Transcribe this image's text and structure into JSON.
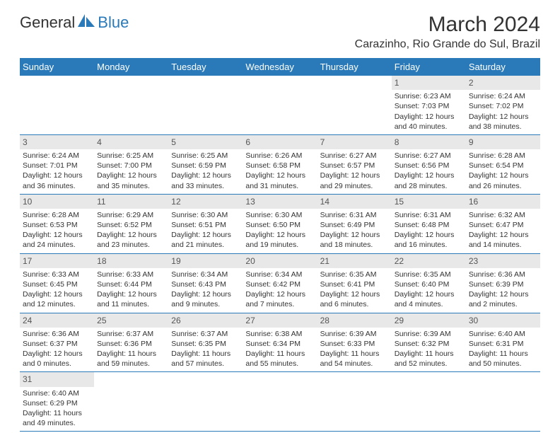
{
  "logo": {
    "part1": "General",
    "part2": "Blue"
  },
  "title": "March 2024",
  "location": "Carazinho, Rio Grande do Sul, Brazil",
  "colors": {
    "brand": "#2a7ab9",
    "headerBg": "#2a7ab9",
    "daynumBg": "#e8e8e8",
    "text": "#333333",
    "background": "#ffffff",
    "rowBorder": "#2a7ab9"
  },
  "weekdays": [
    "Sunday",
    "Monday",
    "Tuesday",
    "Wednesday",
    "Thursday",
    "Friday",
    "Saturday"
  ],
  "startOffset": 5,
  "days": [
    {
      "n": 1,
      "sunrise": "6:23 AM",
      "sunset": "7:03 PM",
      "daylight": "12 hours and 40 minutes."
    },
    {
      "n": 2,
      "sunrise": "6:24 AM",
      "sunset": "7:02 PM",
      "daylight": "12 hours and 38 minutes."
    },
    {
      "n": 3,
      "sunrise": "6:24 AM",
      "sunset": "7:01 PM",
      "daylight": "12 hours and 36 minutes."
    },
    {
      "n": 4,
      "sunrise": "6:25 AM",
      "sunset": "7:00 PM",
      "daylight": "12 hours and 35 minutes."
    },
    {
      "n": 5,
      "sunrise": "6:25 AM",
      "sunset": "6:59 PM",
      "daylight": "12 hours and 33 minutes."
    },
    {
      "n": 6,
      "sunrise": "6:26 AM",
      "sunset": "6:58 PM",
      "daylight": "12 hours and 31 minutes."
    },
    {
      "n": 7,
      "sunrise": "6:27 AM",
      "sunset": "6:57 PM",
      "daylight": "12 hours and 29 minutes."
    },
    {
      "n": 8,
      "sunrise": "6:27 AM",
      "sunset": "6:56 PM",
      "daylight": "12 hours and 28 minutes."
    },
    {
      "n": 9,
      "sunrise": "6:28 AM",
      "sunset": "6:54 PM",
      "daylight": "12 hours and 26 minutes."
    },
    {
      "n": 10,
      "sunrise": "6:28 AM",
      "sunset": "6:53 PM",
      "daylight": "12 hours and 24 minutes."
    },
    {
      "n": 11,
      "sunrise": "6:29 AM",
      "sunset": "6:52 PM",
      "daylight": "12 hours and 23 minutes."
    },
    {
      "n": 12,
      "sunrise": "6:30 AM",
      "sunset": "6:51 PM",
      "daylight": "12 hours and 21 minutes."
    },
    {
      "n": 13,
      "sunrise": "6:30 AM",
      "sunset": "6:50 PM",
      "daylight": "12 hours and 19 minutes."
    },
    {
      "n": 14,
      "sunrise": "6:31 AM",
      "sunset": "6:49 PM",
      "daylight": "12 hours and 18 minutes."
    },
    {
      "n": 15,
      "sunrise": "6:31 AM",
      "sunset": "6:48 PM",
      "daylight": "12 hours and 16 minutes."
    },
    {
      "n": 16,
      "sunrise": "6:32 AM",
      "sunset": "6:47 PM",
      "daylight": "12 hours and 14 minutes."
    },
    {
      "n": 17,
      "sunrise": "6:33 AM",
      "sunset": "6:45 PM",
      "daylight": "12 hours and 12 minutes."
    },
    {
      "n": 18,
      "sunrise": "6:33 AM",
      "sunset": "6:44 PM",
      "daylight": "12 hours and 11 minutes."
    },
    {
      "n": 19,
      "sunrise": "6:34 AM",
      "sunset": "6:43 PM",
      "daylight": "12 hours and 9 minutes."
    },
    {
      "n": 20,
      "sunrise": "6:34 AM",
      "sunset": "6:42 PM",
      "daylight": "12 hours and 7 minutes."
    },
    {
      "n": 21,
      "sunrise": "6:35 AM",
      "sunset": "6:41 PM",
      "daylight": "12 hours and 6 minutes."
    },
    {
      "n": 22,
      "sunrise": "6:35 AM",
      "sunset": "6:40 PM",
      "daylight": "12 hours and 4 minutes."
    },
    {
      "n": 23,
      "sunrise": "6:36 AM",
      "sunset": "6:39 PM",
      "daylight": "12 hours and 2 minutes."
    },
    {
      "n": 24,
      "sunrise": "6:36 AM",
      "sunset": "6:37 PM",
      "daylight": "12 hours and 0 minutes."
    },
    {
      "n": 25,
      "sunrise": "6:37 AM",
      "sunset": "6:36 PM",
      "daylight": "11 hours and 59 minutes."
    },
    {
      "n": 26,
      "sunrise": "6:37 AM",
      "sunset": "6:35 PM",
      "daylight": "11 hours and 57 minutes."
    },
    {
      "n": 27,
      "sunrise": "6:38 AM",
      "sunset": "6:34 PM",
      "daylight": "11 hours and 55 minutes."
    },
    {
      "n": 28,
      "sunrise": "6:39 AM",
      "sunset": "6:33 PM",
      "daylight": "11 hours and 54 minutes."
    },
    {
      "n": 29,
      "sunrise": "6:39 AM",
      "sunset": "6:32 PM",
      "daylight": "11 hours and 52 minutes."
    },
    {
      "n": 30,
      "sunrise": "6:40 AM",
      "sunset": "6:31 PM",
      "daylight": "11 hours and 50 minutes."
    },
    {
      "n": 31,
      "sunrise": "6:40 AM",
      "sunset": "6:29 PM",
      "daylight": "11 hours and 49 minutes."
    }
  ],
  "labels": {
    "sunrise": "Sunrise:",
    "sunset": "Sunset:",
    "daylight": "Daylight:"
  }
}
